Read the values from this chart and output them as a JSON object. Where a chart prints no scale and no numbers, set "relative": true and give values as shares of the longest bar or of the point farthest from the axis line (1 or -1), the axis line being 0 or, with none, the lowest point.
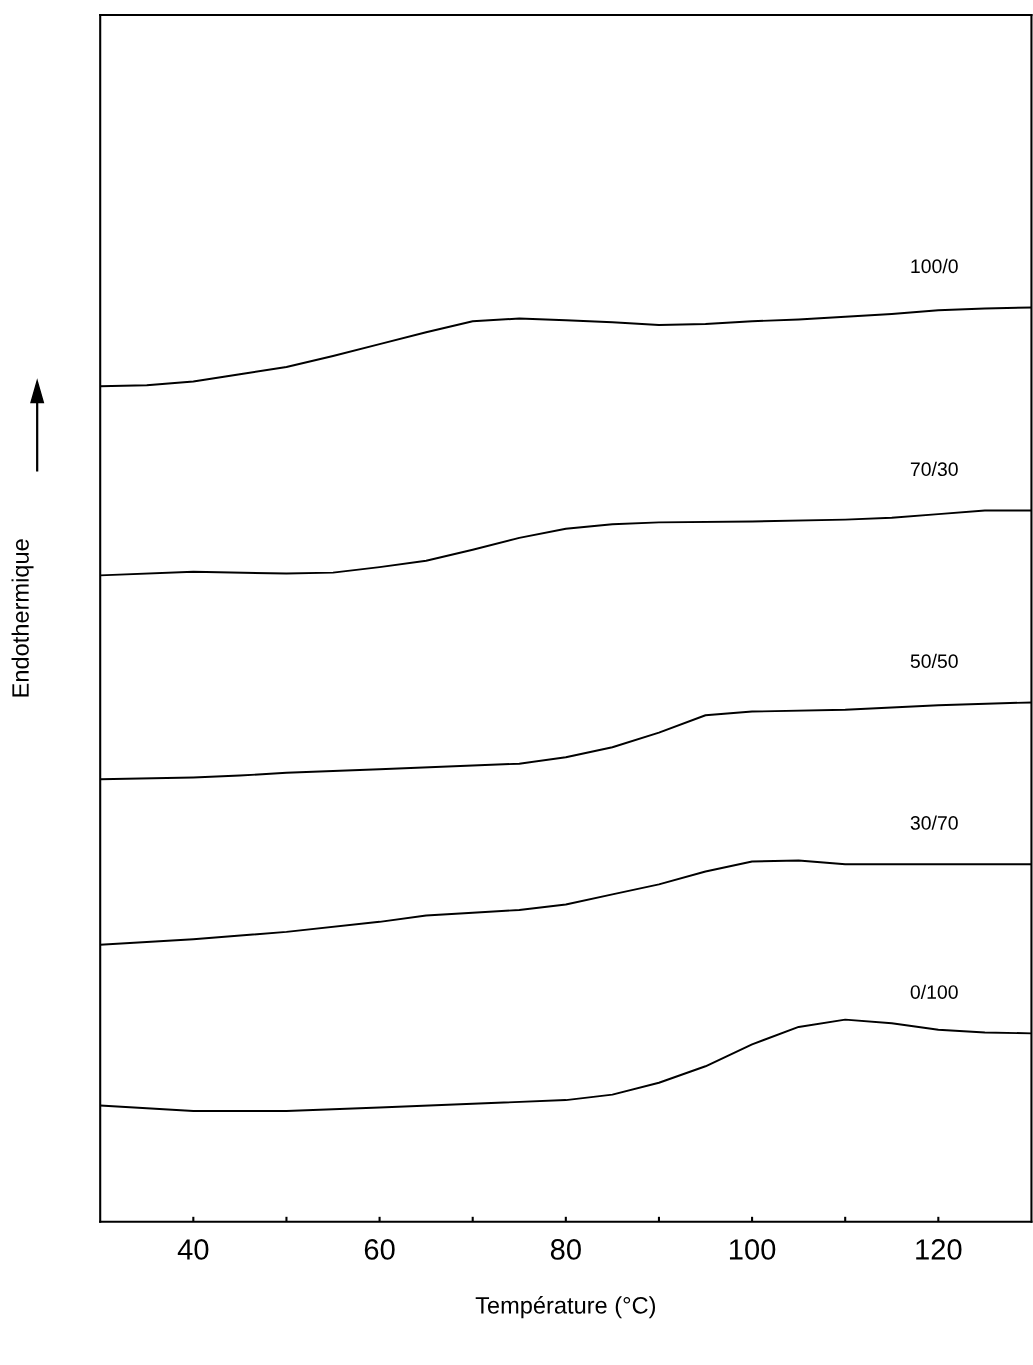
{
  "chart_data": {
    "type": "line",
    "relative": true,
    "xlabel": "Température (°C)",
    "ylabel": "Endothermique",
    "xlim": [
      30,
      130
    ],
    "xticks": [
      40,
      {
        "value": 50,
        "label": null
      },
      60,
      {
        "value": 70,
        "label": null
      },
      80,
      {
        "value": 90,
        "label": null
      },
      100,
      {
        "value": 110,
        "label": null
      },
      120
    ],
    "grid": false,
    "legend": false,
    "marker": "none",
    "line_style": "solid",
    "series": [
      {
        "name": "100/0",
        "color": "#000000",
        "x": [
          30,
          35,
          40,
          45,
          50,
          55,
          60,
          65,
          70,
          75,
          80,
          85,
          90,
          95,
          100,
          105,
          110,
          115,
          120,
          125,
          130
        ],
        "values": [
          0.914,
          0.915,
          0.919,
          0.927,
          0.935,
          0.947,
          0.96,
          0.973,
          0.985,
          0.988,
          0.986,
          0.984,
          0.981,
          0.982,
          0.985,
          0.987,
          0.99,
          0.993,
          0.997,
          0.999,
          1.0
        ]
      },
      {
        "name": "70/30",
        "color": "#000000",
        "x": [
          30,
          40,
          50,
          55,
          60,
          65,
          70,
          75,
          80,
          85,
          90,
          100,
          110,
          115,
          120,
          125,
          130
        ],
        "values": [
          0.707,
          0.711,
          0.709,
          0.71,
          0.716,
          0.723,
          0.735,
          0.748,
          0.758,
          0.763,
          0.765,
          0.766,
          0.768,
          0.77,
          0.774,
          0.778,
          0.778
        ]
      },
      {
        "name": "50/50",
        "color": "#000000",
        "x": [
          30,
          40,
          45,
          50,
          60,
          70,
          75,
          80,
          85,
          90,
          95,
          100,
          110,
          120,
          130
        ],
        "values": [
          0.484,
          0.486,
          0.488,
          0.491,
          0.495,
          0.499,
          0.501,
          0.508,
          0.519,
          0.535,
          0.554,
          0.558,
          0.56,
          0.565,
          0.568
        ]
      },
      {
        "name": "30/70",
        "color": "#000000",
        "x": [
          30,
          40,
          50,
          60,
          65,
          70,
          75,
          80,
          85,
          90,
          95,
          100,
          105,
          110,
          120,
          130
        ],
        "values": [
          0.303,
          0.309,
          0.317,
          0.328,
          0.335,
          0.338,
          0.341,
          0.347,
          0.358,
          0.369,
          0.383,
          0.394,
          0.395,
          0.391,
          0.391,
          0.391
        ]
      },
      {
        "name": "0/100",
        "color": "#000000",
        "x": [
          30,
          35,
          40,
          50,
          60,
          70,
          80,
          85,
          90,
          95,
          100,
          105,
          110,
          115,
          120,
          125,
          130
        ],
        "values": [
          0.127,
          0.124,
          0.121,
          0.121,
          0.125,
          0.129,
          0.133,
          0.139,
          0.152,
          0.17,
          0.194,
          0.213,
          0.221,
          0.217,
          0.21,
          0.207,
          0.206
        ]
      }
    ]
  }
}
